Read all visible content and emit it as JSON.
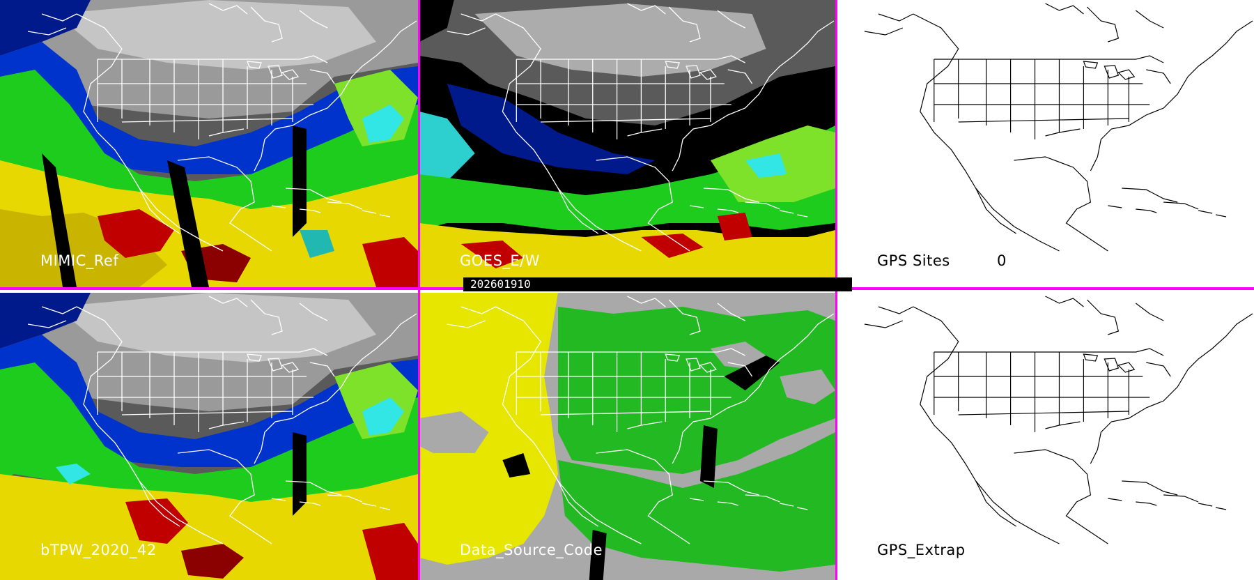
{
  "colors": {
    "divider": "#ff00ff",
    "black": "#000000",
    "white": "#ffffff",
    "navy": "#001a8c",
    "blue": "#0033cc",
    "cyan": "#33e6e6",
    "teal": "#20b8b0",
    "green": "#1ecc1e",
    "lime": "#7ee22a",
    "yellow": "#e6d800",
    "olive": "#c9b400",
    "red": "#c00000",
    "dark_red": "#8b0000",
    "gray_light": "#cfcfcf",
    "gray_mid": "#9a9a9a",
    "gray_dark": "#5a5a5a",
    "dsc_gray": "#a9a9a9",
    "dsc_yellow": "#e6e600",
    "dsc_green": "#22b922"
  },
  "panels": {
    "top_left": {
      "label": "MIMIC_Ref"
    },
    "top_middle": {
      "label": "GOES_E/W"
    },
    "top_right": {
      "label": "GPS Sites",
      "count": "0"
    },
    "bottom_left": {
      "label": "bTPW_2020_42"
    },
    "bottom_middle": {
      "label": "Data_Source_Code"
    },
    "bottom_right": {
      "label": "GPS_Extrap"
    }
  },
  "timestamp": "202601910"
}
